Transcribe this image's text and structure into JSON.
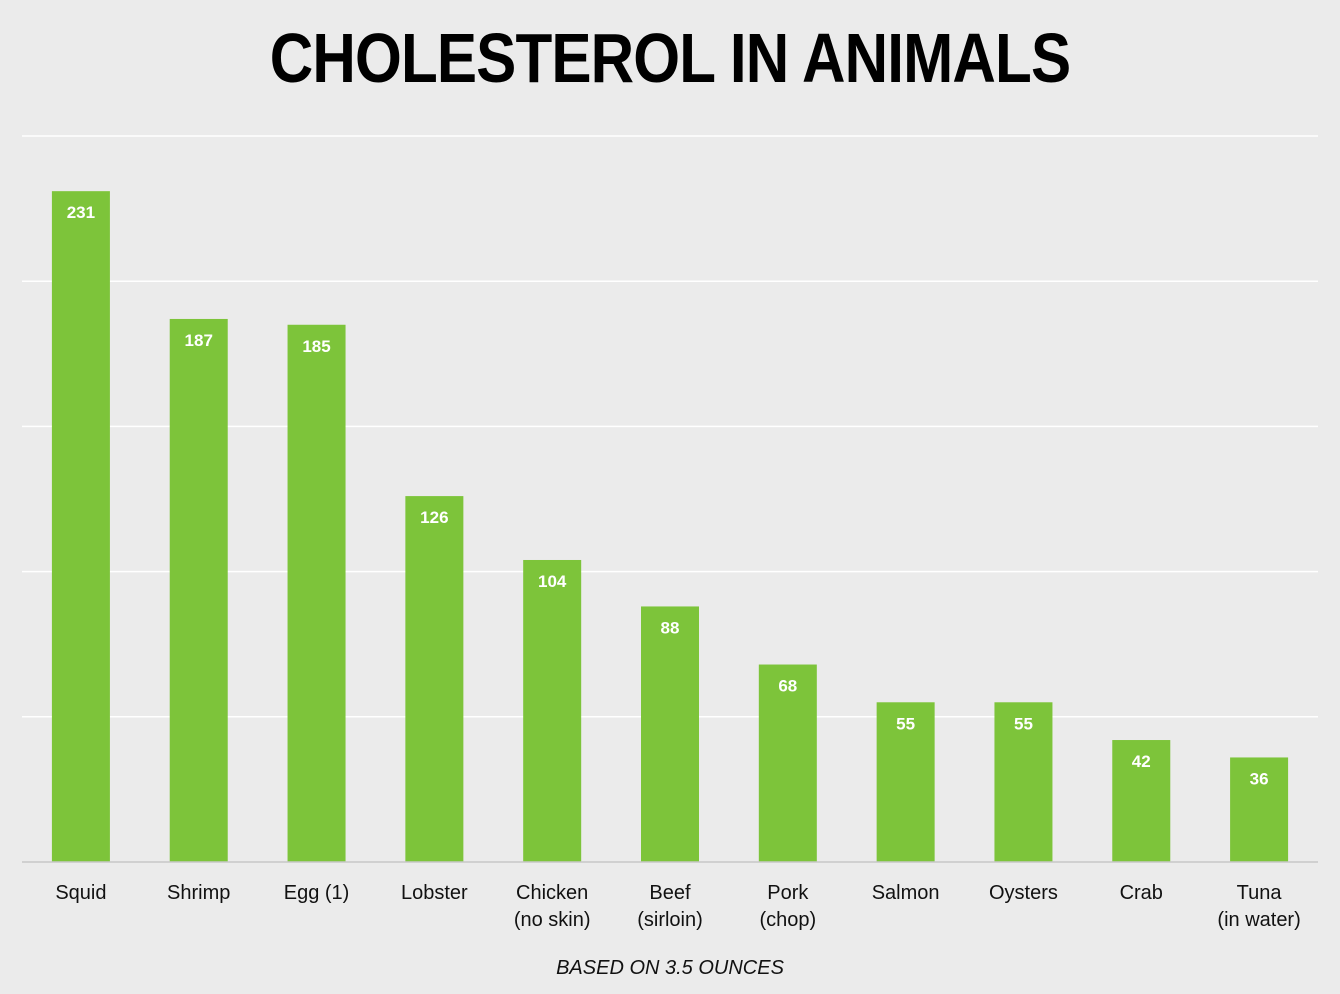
{
  "chart_data": {
    "type": "bar",
    "title": "CHOLESTEROL IN ANIMALS",
    "subtitle": "BASED ON 3.5 OUNCES",
    "xlabel": "",
    "ylabel": "",
    "ylim": [
      0,
      250
    ],
    "grid": true,
    "colors": {
      "bar": "#7dc43a",
      "background": "#ebebeb"
    },
    "categories": [
      [
        "Squid"
      ],
      [
        "Shrimp"
      ],
      [
        "Egg (1)"
      ],
      [
        "Lobster"
      ],
      [
        "Chicken",
        "(no skin)"
      ],
      [
        "Beef",
        "(sirloin)"
      ],
      [
        "Pork",
        "(chop)"
      ],
      [
        "Salmon"
      ],
      [
        "Oysters"
      ],
      [
        "Crab"
      ],
      [
        "Tuna",
        "(in water)"
      ]
    ],
    "values": [
      231,
      187,
      185,
      126,
      104,
      88,
      68,
      55,
      55,
      42,
      36
    ]
  }
}
